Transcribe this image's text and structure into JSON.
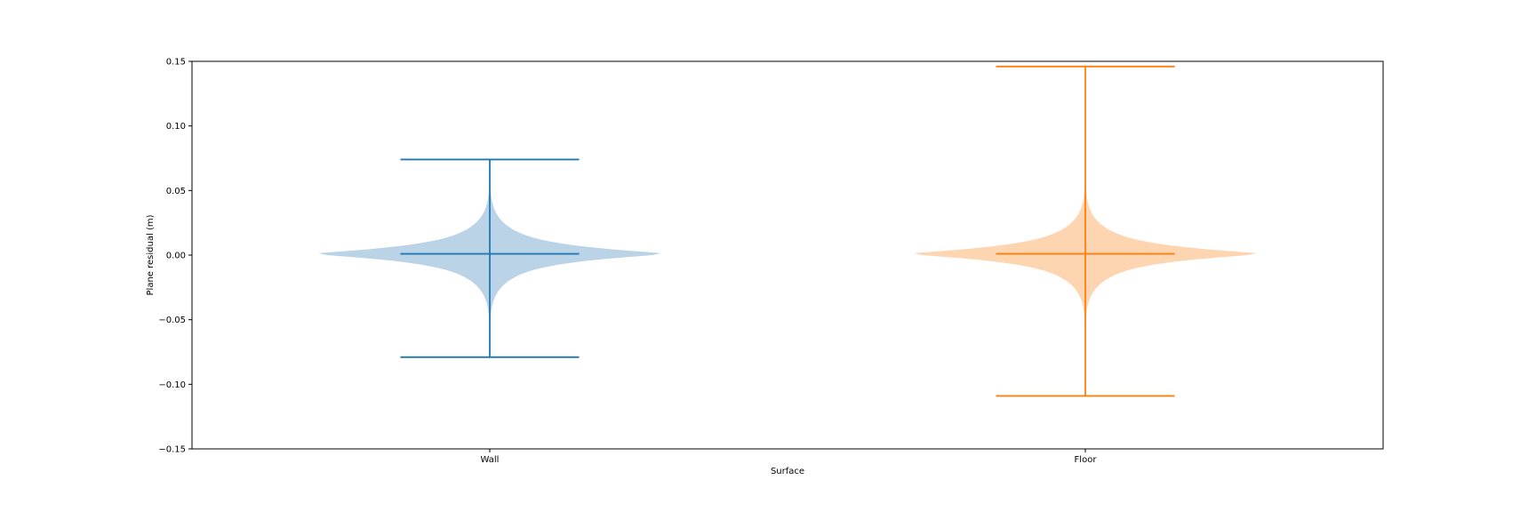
{
  "chart_data": {
    "type": "violin",
    "title": "",
    "xlabel": "Surface",
    "ylabel": "Plane residual (m)",
    "categories": [
      "Wall",
      "Floor"
    ],
    "ylim": [
      -0.15,
      0.15
    ],
    "yticks": [
      -0.15,
      -0.1,
      -0.05,
      0.0,
      0.05,
      0.1,
      0.15
    ],
    "ytick_labels": [
      "−0.15",
      "−0.10",
      "−0.05",
      "0.00",
      "0.05",
      "0.10",
      "0.15"
    ],
    "grid": false,
    "legend": "none",
    "series": [
      {
        "category": "Wall",
        "min": -0.079,
        "max": 0.074,
        "median": 0.001,
        "color": "#1f77b4",
        "fill": "#bad3e7"
      },
      {
        "category": "Floor",
        "min": -0.109,
        "max": 0.146,
        "median": 0.001,
        "color": "#ff7f0e",
        "fill": "#fed5b1"
      }
    ]
  }
}
